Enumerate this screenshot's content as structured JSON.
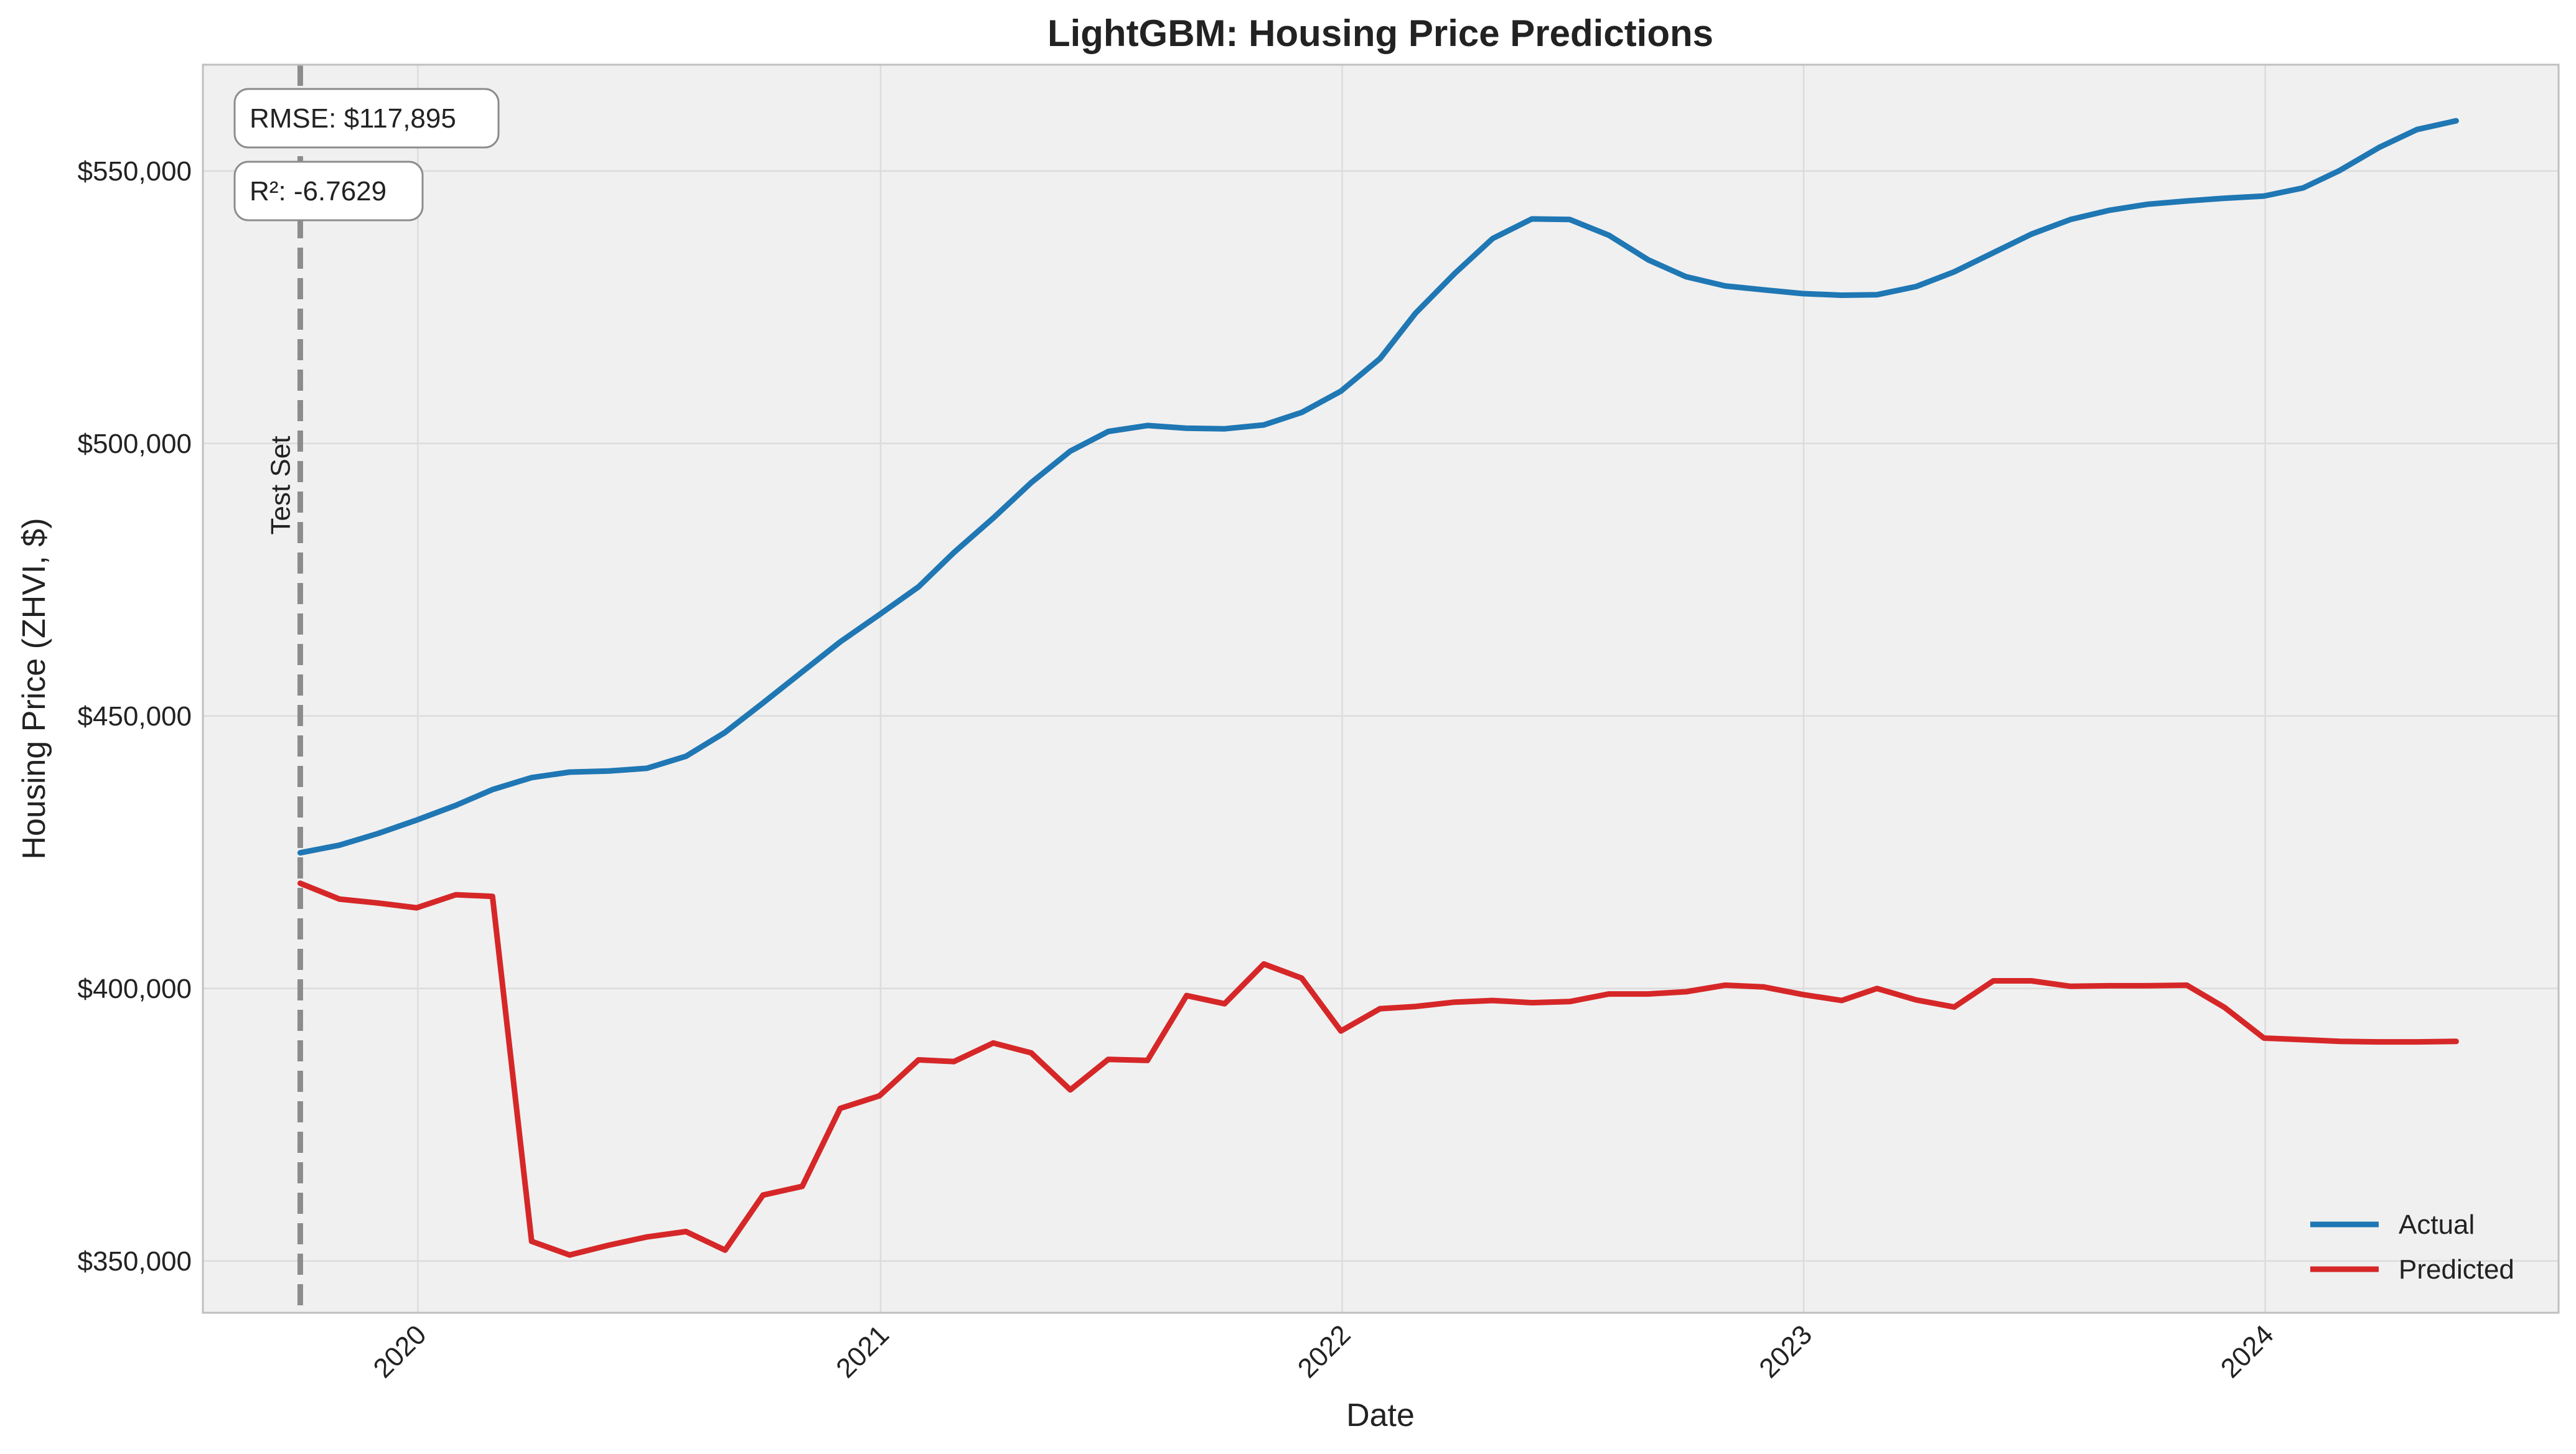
{
  "chart_data": {
    "type": "line",
    "title": "LightGBM: Housing Price Predictions",
    "xlabel": "Date",
    "ylabel": "Housing Price (ZHVI, $)",
    "xlim": [
      "2019-07-15",
      "2024-08-20"
    ],
    "ylim": [
      340500,
      569500
    ],
    "x_ticks": [
      {
        "date": "2020-01-01",
        "label": "2020"
      },
      {
        "date": "2021-01-01",
        "label": "2021"
      },
      {
        "date": "2022-01-01",
        "label": "2022"
      },
      {
        "date": "2023-01-01",
        "label": "2023"
      },
      {
        "date": "2024-01-01",
        "label": "2024"
      }
    ],
    "y_ticks": [
      {
        "value": 350000,
        "label": "$350,000"
      },
      {
        "value": 400000,
        "label": "$400,000"
      },
      {
        "value": 450000,
        "label": "$450,000"
      },
      {
        "value": 500000,
        "label": "$500,000"
      },
      {
        "value": 550000,
        "label": "$550,000"
      }
    ],
    "grid": true,
    "legend_position": "lower-right",
    "test_set_start": "2019-09-30",
    "test_set_label": "Test Set",
    "x": [
      "2019-09-30",
      "2019-10-31",
      "2019-11-30",
      "2019-12-31",
      "2020-01-31",
      "2020-02-29",
      "2020-03-31",
      "2020-04-30",
      "2020-05-31",
      "2020-06-30",
      "2020-07-31",
      "2020-08-31",
      "2020-09-30",
      "2020-10-31",
      "2020-11-30",
      "2020-12-31",
      "2021-01-31",
      "2021-02-28",
      "2021-03-31",
      "2021-04-30",
      "2021-05-31",
      "2021-06-30",
      "2021-07-31",
      "2021-08-31",
      "2021-09-30",
      "2021-10-31",
      "2021-11-30",
      "2021-12-31",
      "2022-01-31",
      "2022-02-28",
      "2022-03-31",
      "2022-04-30",
      "2022-05-31",
      "2022-06-30",
      "2022-07-31",
      "2022-08-31",
      "2022-09-30",
      "2022-10-31",
      "2022-11-30",
      "2022-12-31",
      "2023-01-31",
      "2023-02-28",
      "2023-03-31",
      "2023-04-30",
      "2023-05-31",
      "2023-06-30",
      "2023-07-31",
      "2023-08-31",
      "2023-09-30",
      "2023-10-31",
      "2023-11-30",
      "2023-12-31",
      "2024-01-31",
      "2024-02-29",
      "2024-03-31",
      "2024-04-30",
      "2024-05-31"
    ],
    "series": [
      {
        "name": "Actual",
        "color": "#1f77b4",
        "values": [
          424900,
          426300,
          428400,
          430900,
          433600,
          436500,
          438700,
          439700,
          439900,
          440400,
          442600,
          447000,
          452400,
          458100,
          463600,
          468600,
          473700,
          480000,
          486300,
          492800,
          498600,
          502200,
          503300,
          502800,
          502700,
          503400,
          505700,
          509600,
          515600,
          523900,
          531200,
          537600,
          541200,
          541100,
          538200,
          533700,
          530600,
          528900,
          528200,
          527500,
          527200,
          527300,
          528800,
          531500,
          535000,
          538400,
          541100,
          542800,
          543900,
          544500,
          545000,
          545400,
          546900,
          550100,
          554300,
          557600,
          559200
        ]
      },
      {
        "name": "Predicted",
        "color": "#d62728",
        "values": [
          419300,
          416400,
          415700,
          414800,
          417200,
          416900,
          353600,
          351100,
          352900,
          354400,
          355400,
          352000,
          362100,
          363700,
          378000,
          380300,
          386900,
          386600,
          390000,
          388200,
          381400,
          387000,
          386800,
          398700,
          397200,
          404500,
          401900,
          392200,
          396300,
          396700,
          397500,
          397800,
          397400,
          397600,
          399000,
          399000,
          399400,
          400600,
          400300,
          398900,
          397800,
          400000,
          397900,
          396600,
          401400,
          401400,
          400400,
          400500,
          400500,
          400600,
          396500,
          390900,
          390600,
          390300,
          390200,
          390200,
          390300
        ]
      }
    ],
    "annotations": [
      {
        "text": "RMSE: $117,895"
      },
      {
        "text": "R²: -6.7629"
      }
    ]
  }
}
